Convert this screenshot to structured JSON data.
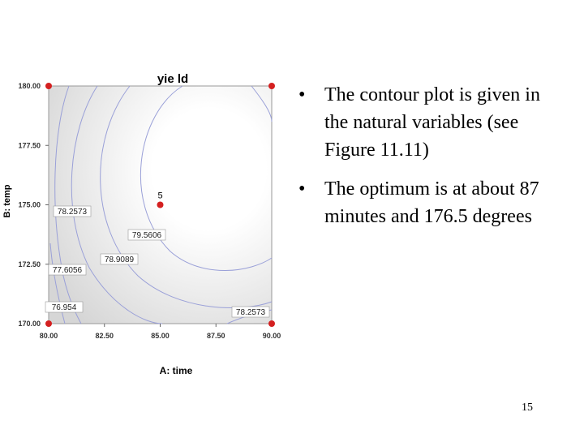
{
  "chart_data": {
    "type": "contour",
    "title": "yie ld",
    "x_label": "A: time",
    "y_label": "B: temp",
    "xlim": [
      80,
      90
    ],
    "ylim": [
      170,
      180
    ],
    "xticks": [
      {
        "value": 80,
        "label": "80.00"
      },
      {
        "value": 82.5,
        "label": "82.50"
      },
      {
        "value": 85,
        "label": "85.00"
      },
      {
        "value": 87.5,
        "label": "87.50"
      },
      {
        "value": 90,
        "label": "90.00"
      }
    ],
    "yticks": [
      {
        "value": 170,
        "label": "170.00"
      },
      {
        "value": 172.5,
        "label": "172.50"
      },
      {
        "value": 175,
        "label": "175.00"
      },
      {
        "value": 177.5,
        "label": "177.50"
      },
      {
        "value": 180,
        "label": "180.00"
      }
    ],
    "levels": [
      76.954,
      77.6056,
      78.2573,
      78.9089,
      79.5606
    ],
    "points": {
      "x": [
        80,
        90,
        80,
        90,
        85
      ],
      "y": [
        170,
        170,
        180,
        180,
        175
      ],
      "color": "#d42020"
    },
    "center_label": "5"
  },
  "bullets": [
    "The contour plot is given in the natural variables (see Figure 11.11)",
    "The optimum is at about 87 minutes and 176.5 degrees"
  ],
  "page_number": "15"
}
